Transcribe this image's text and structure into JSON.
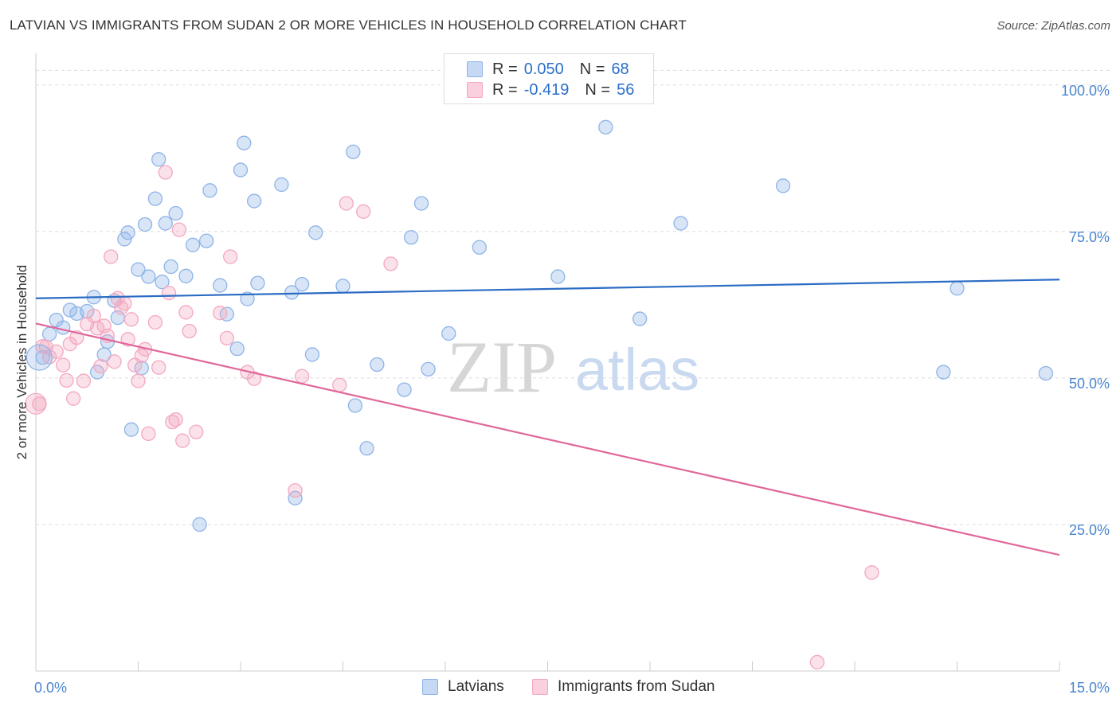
{
  "header": {
    "title": "LATVIAN VS IMMIGRANTS FROM SUDAN 2 OR MORE VEHICLES IN HOUSEHOLD CORRELATION CHART",
    "source": "Source: ZipAtlas.com"
  },
  "watermark": {
    "zip": "ZIP",
    "atlas": "atlas"
  },
  "legend_top": {
    "r_label": "R =",
    "n_label": "N =",
    "rows": [
      {
        "r": "0.050",
        "n": "68"
      },
      {
        "r": "-0.419",
        "n": "56"
      }
    ]
  },
  "chart_data": {
    "type": "scatter",
    "title": "LATVIAN VS IMMIGRANTS FROM SUDAN 2 OR MORE VEHICLES IN HOUSEHOLD CORRELATION CHART",
    "xlabel": "",
    "ylabel": "2 or more Vehicles in Household",
    "xlim": [
      0,
      15
    ],
    "ylim": [
      0,
      105
    ],
    "x_tick_labels": [
      "0.0%",
      "15.0%"
    ],
    "y_ticks": [
      25,
      50,
      75,
      100
    ],
    "y_tick_labels": [
      "25.0%",
      "50.0%",
      "75.0%",
      "100.0%"
    ],
    "grid": true,
    "legend_position": "bottom",
    "series": [
      {
        "name": "Latvians",
        "color": "#8fb4e8",
        "line_color": "#2b6cc4",
        "trend": [
          [
            0,
            63.6
          ],
          [
            15,
            66.8
          ]
        ],
        "points": [
          [
            0.1,
            53.5
          ],
          [
            0.2,
            57.5
          ],
          [
            0.3,
            59.9
          ],
          [
            0.4,
            58.6
          ],
          [
            0.5,
            61.6
          ],
          [
            0.6,
            61.0
          ],
          [
            0.75,
            61.4
          ],
          [
            0.85,
            63.8
          ],
          [
            0.9,
            51.0
          ],
          [
            1.0,
            54.0
          ],
          [
            1.05,
            56.2
          ],
          [
            1.15,
            63.2
          ],
          [
            1.2,
            60.3
          ],
          [
            1.3,
            73.7
          ],
          [
            1.35,
            74.8
          ],
          [
            1.4,
            41.2
          ],
          [
            1.5,
            68.5
          ],
          [
            1.55,
            51.7
          ],
          [
            1.6,
            76.2
          ],
          [
            1.65,
            67.3
          ],
          [
            1.75,
            80.6
          ],
          [
            1.8,
            87.3
          ],
          [
            1.85,
            66.4
          ],
          [
            1.9,
            76.4
          ],
          [
            1.98,
            69.0
          ],
          [
            2.05,
            78.1
          ],
          [
            2.2,
            67.4
          ],
          [
            2.3,
            72.7
          ],
          [
            2.4,
            25.0
          ],
          [
            2.5,
            73.4
          ],
          [
            2.55,
            82.0
          ],
          [
            2.7,
            65.8
          ],
          [
            2.8,
            60.9
          ],
          [
            2.95,
            55.0
          ],
          [
            3.0,
            85.5
          ],
          [
            3.05,
            90.1
          ],
          [
            3.1,
            63.5
          ],
          [
            3.2,
            80.2
          ],
          [
            3.25,
            66.2
          ],
          [
            3.6,
            83.0
          ],
          [
            3.75,
            64.6
          ],
          [
            3.8,
            29.5
          ],
          [
            3.9,
            66.0
          ],
          [
            4.05,
            54.0
          ],
          [
            4.1,
            74.8
          ],
          [
            4.5,
            65.7
          ],
          [
            4.65,
            88.6
          ],
          [
            4.68,
            45.3
          ],
          [
            4.85,
            38.0
          ],
          [
            5.0,
            52.3
          ],
          [
            5.4,
            48.0
          ],
          [
            5.5,
            74.0
          ],
          [
            5.65,
            79.8
          ],
          [
            5.75,
            51.5
          ],
          [
            6.05,
            57.6
          ],
          [
            6.5,
            72.3
          ],
          [
            7.65,
            67.3
          ],
          [
            8.35,
            92.8
          ],
          [
            8.85,
            60.1
          ],
          [
            9.45,
            76.4
          ],
          [
            10.95,
            82.8
          ],
          [
            13.5,
            65.3
          ],
          [
            13.3,
            51.0
          ],
          [
            14.8,
            50.8
          ]
        ]
      },
      {
        "name": "Immigrants from Sudan",
        "color": "#f4a8c0",
        "line_color": "#e0679a",
        "trend": [
          [
            0,
            59.3
          ],
          [
            15,
            19.8
          ]
        ],
        "points": [
          [
            0.05,
            45.6
          ],
          [
            0.1,
            55.4
          ],
          [
            0.15,
            55.3
          ],
          [
            0.2,
            53.6
          ],
          [
            0.3,
            54.5
          ],
          [
            0.4,
            52.2
          ],
          [
            0.45,
            49.6
          ],
          [
            0.5,
            55.8
          ],
          [
            0.55,
            46.5
          ],
          [
            0.6,
            56.9
          ],
          [
            0.7,
            49.5
          ],
          [
            0.75,
            59.2
          ],
          [
            0.85,
            60.6
          ],
          [
            0.9,
            58.5
          ],
          [
            0.95,
            52.0
          ],
          [
            1.0,
            58.9
          ],
          [
            1.05,
            57.2
          ],
          [
            1.1,
            70.7
          ],
          [
            1.15,
            52.8
          ],
          [
            1.2,
            63.6
          ],
          [
            1.25,
            62.0
          ],
          [
            1.3,
            62.7
          ],
          [
            1.35,
            56.6
          ],
          [
            1.4,
            60.0
          ],
          [
            1.45,
            52.2
          ],
          [
            1.5,
            49.5
          ],
          [
            1.55,
            53.8
          ],
          [
            1.6,
            54.9
          ],
          [
            1.65,
            40.5
          ],
          [
            1.75,
            59.5
          ],
          [
            1.8,
            51.8
          ],
          [
            1.9,
            85.1
          ],
          [
            1.95,
            64.5
          ],
          [
            2.0,
            42.5
          ],
          [
            2.05,
            42.9
          ],
          [
            2.1,
            75.3
          ],
          [
            2.15,
            39.3
          ],
          [
            2.2,
            61.2
          ],
          [
            2.25,
            58.0
          ],
          [
            2.35,
            40.8
          ],
          [
            2.7,
            61.1
          ],
          [
            2.8,
            56.8
          ],
          [
            2.85,
            70.7
          ],
          [
            3.1,
            51.0
          ],
          [
            3.2,
            49.9
          ],
          [
            3.8,
            30.8
          ],
          [
            3.9,
            50.3
          ],
          [
            4.45,
            48.8
          ],
          [
            4.55,
            79.8
          ],
          [
            4.8,
            78.4
          ],
          [
            5.2,
            69.5
          ],
          [
            12.25,
            16.8
          ],
          [
            11.45,
            1.5
          ]
        ]
      }
    ]
  }
}
